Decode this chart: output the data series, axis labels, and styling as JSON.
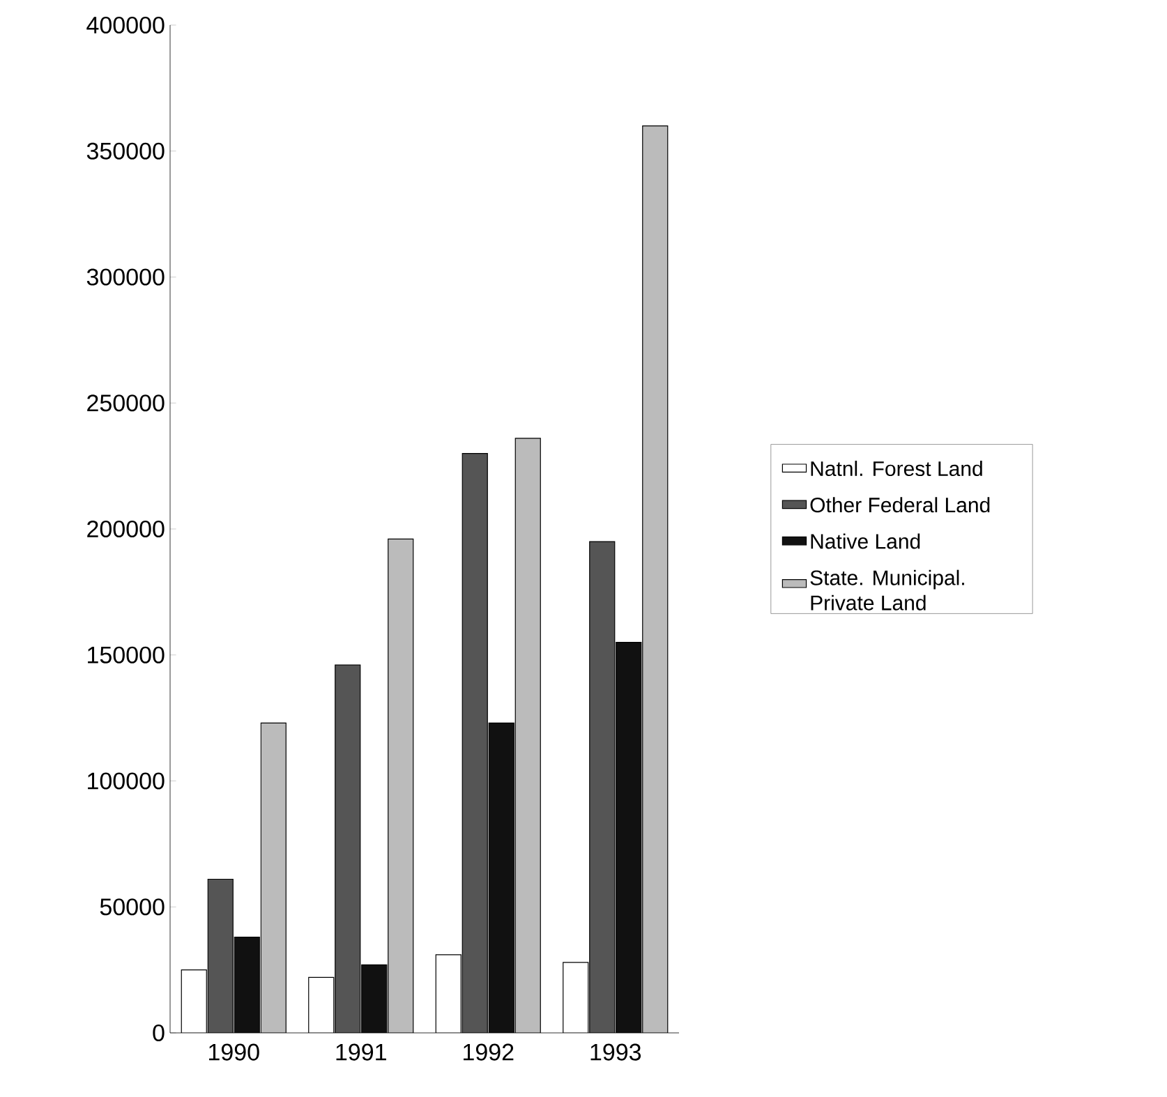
{
  "chart_data": {
    "type": "bar",
    "categories": [
      "1990",
      "1991",
      "1992",
      "1993"
    ],
    "series": [
      {
        "name": "Natnl. Forest Land",
        "color": "#ffffff",
        "values": [
          25000,
          22000,
          31000,
          28000
        ]
      },
      {
        "name": "Other Federal Land",
        "color": "#555555",
        "values": [
          61000,
          146000,
          230000,
          195000
        ]
      },
      {
        "name": "Native Land",
        "color": "#111111",
        "values": [
          38000,
          27000,
          123000,
          155000
        ]
      },
      {
        "name": "State. Municipal. Private Land",
        "color": "#bbbbbb",
        "values": [
          123000,
          196000,
          236000,
          360000
        ]
      }
    ],
    "ylim": [
      0,
      400000
    ],
    "yticks": [
      0,
      50000,
      100000,
      150000,
      200000,
      250000,
      300000,
      350000,
      400000
    ],
    "grid": false,
    "legend": "right"
  }
}
